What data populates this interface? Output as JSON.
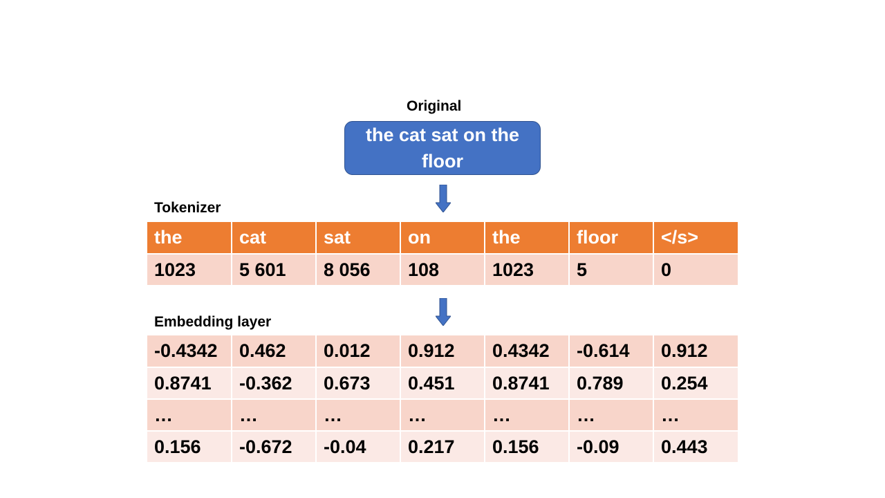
{
  "original": {
    "label": "Original",
    "text": "the cat sat on the floor"
  },
  "tokenizer": {
    "label": "Tokenizer",
    "tokens": [
      "the",
      "cat",
      "sat",
      "on",
      "the",
      "floor",
      "</s>"
    ],
    "ids": [
      "1023",
      "5 601",
      "8 056",
      "108",
      "1023",
      "5",
      "0"
    ]
  },
  "embedding": {
    "label": "Embedding layer",
    "rows": [
      [
        "-0.4342",
        "0.462",
        "0.012",
        "0.912",
        "0.4342",
        "-0.614",
        "0.912"
      ],
      [
        "0.8741",
        "-0.362",
        "0.673",
        "0.451",
        "0.8741",
        "0.789",
        "0.254"
      ],
      [
        "…",
        "…",
        "…",
        "…",
        "…",
        "…",
        "…"
      ],
      [
        "0.156",
        "-0.672",
        "-0.04",
        "0.217",
        "0.156",
        "-0.09",
        "0.443"
      ]
    ]
  },
  "colors": {
    "original_box": "#4472C4",
    "header": "#ED7D31",
    "band_dark": "#F8D5CA",
    "band_light": "#FBE9E5",
    "arrow": "#4472C4"
  }
}
